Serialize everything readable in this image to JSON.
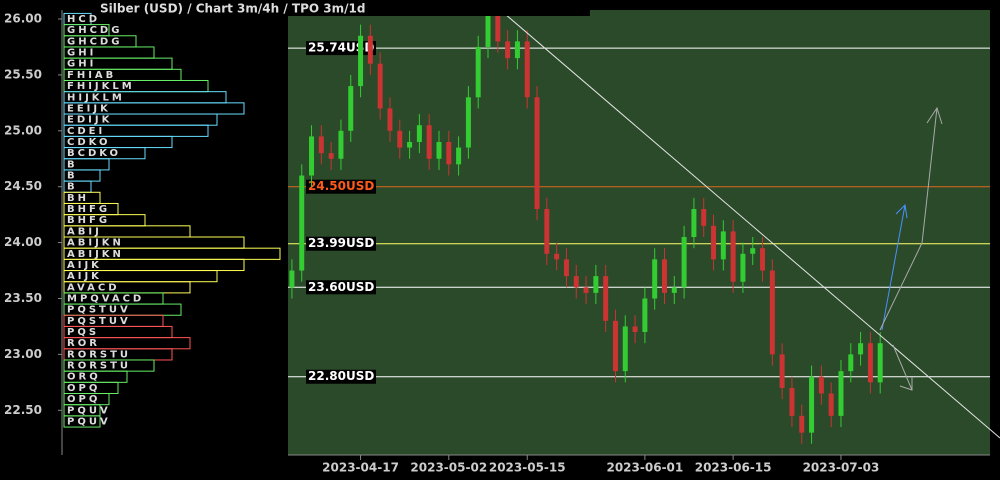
{
  "chart_data": {
    "type": "candlestick",
    "title": "Silber (USD) /  Chart 3m/4h / TPO 3m/1d",
    "up_color": "#33cc33",
    "down_color": "#cc3333",
    "open": [
      23.6,
      23.75,
      24.6,
      24.95,
      24.8,
      24.75,
      25.0,
      25.4,
      25.85,
      25.6,
      25.2,
      25.0,
      24.85,
      24.9,
      25.05,
      24.75,
      24.9,
      24.7,
      24.85,
      25.3,
      25.75,
      26.05,
      25.8,
      25.65,
      25.8,
      25.3,
      24.3,
      23.9,
      23.85,
      23.7,
      23.6,
      23.55,
      23.7,
      23.3,
      22.85,
      23.25,
      23.2,
      23.5,
      23.85,
      23.55,
      23.6,
      24.05,
      24.3,
      24.15,
      23.85,
      24.1,
      23.65,
      23.9,
      23.95,
      23.75,
      23.0,
      22.7,
      22.45,
      22.3,
      22.8,
      22.65,
      22.45,
      22.85,
      23.0,
      23.1,
      22.75
    ],
    "high": [
      23.85,
      24.7,
      25.05,
      25.05,
      24.9,
      25.1,
      25.5,
      25.95,
      25.95,
      25.7,
      25.3,
      25.1,
      25.0,
      25.15,
      25.15,
      25.0,
      25.0,
      24.95,
      25.4,
      25.85,
      26.15,
      26.15,
      25.9,
      25.9,
      25.9,
      25.4,
      24.4,
      24.0,
      23.95,
      23.8,
      23.7,
      23.8,
      23.8,
      23.4,
      23.35,
      23.35,
      23.6,
      23.95,
      23.95,
      23.7,
      24.15,
      24.4,
      24.4,
      24.25,
      24.2,
      24.2,
      24.0,
      24.05,
      24.05,
      23.85,
      23.1,
      22.8,
      22.55,
      22.9,
      22.9,
      22.75,
      22.95,
      23.1,
      23.2,
      23.2,
      23.2
    ],
    "low": [
      23.5,
      23.65,
      24.5,
      24.7,
      24.65,
      24.65,
      24.9,
      25.3,
      25.5,
      25.1,
      24.9,
      24.75,
      24.75,
      24.8,
      24.65,
      24.65,
      24.6,
      24.6,
      24.75,
      25.2,
      25.65,
      25.7,
      25.55,
      25.55,
      25.2,
      24.2,
      23.8,
      23.75,
      23.6,
      23.5,
      23.45,
      23.45,
      23.2,
      22.75,
      22.75,
      23.1,
      23.1,
      23.4,
      23.45,
      23.45,
      23.5,
      23.95,
      24.05,
      23.75,
      23.75,
      23.55,
      23.55,
      23.8,
      23.65,
      22.9,
      22.6,
      22.35,
      22.2,
      22.2,
      22.55,
      22.35,
      22.35,
      22.75,
      22.9,
      22.65,
      22.65
    ],
    "close": [
      23.75,
      24.6,
      24.95,
      24.8,
      24.75,
      25.0,
      25.4,
      25.85,
      25.6,
      25.2,
      25.0,
      24.85,
      24.9,
      25.05,
      24.75,
      24.9,
      24.7,
      24.85,
      25.3,
      25.75,
      26.05,
      25.8,
      25.65,
      25.8,
      25.3,
      24.3,
      23.9,
      23.85,
      23.7,
      23.6,
      23.55,
      23.7,
      23.3,
      22.85,
      23.25,
      23.2,
      23.5,
      23.85,
      23.55,
      23.6,
      24.05,
      24.3,
      24.15,
      23.85,
      24.1,
      23.65,
      23.9,
      23.95,
      23.75,
      23.0,
      22.7,
      22.45,
      22.3,
      22.8,
      22.65,
      22.45,
      22.85,
      23.0,
      23.1,
      22.75,
      23.1
    ],
    "xlim": [
      -0.4,
      71.2
    ],
    "xticks": [
      {
        "value": 7,
        "label": "2023-04-17"
      },
      {
        "value": 16,
        "label": "2023-05-02"
      },
      {
        "value": 24,
        "label": "2023-05-15"
      },
      {
        "value": 36,
        "label": "2023-06-01"
      },
      {
        "value": 45,
        "label": "2023-06-15"
      },
      {
        "value": 56,
        "label": "2023-07-03"
      }
    ],
    "ylim": [
      22.1,
      26.17
    ],
    "yticks": [
      {
        "value": 26,
        "label": "26.00"
      },
      {
        "value": 25.5,
        "label": "25.50"
      },
      {
        "value": 25,
        "label": "25.00"
      },
      {
        "value": 24.5,
        "label": "24.50"
      },
      {
        "value": 24,
        "label": "24.00"
      },
      {
        "value": 23.5,
        "label": "23.50"
      },
      {
        "value": 23,
        "label": "23.00"
      },
      {
        "value": 22.5,
        "label": "22.50"
      }
    ],
    "levels": [
      {
        "value": 25.74,
        "label": "25.74USD",
        "color": "#ffffff",
        "text_color": "#ffffff"
      },
      {
        "value": 24.5,
        "label": "24.50USD",
        "color": "#e0661c",
        "text_color": "#ff5a1a"
      },
      {
        "value": 23.99,
        "label": "23.99USD",
        "color": "#ffff66",
        "text_color": "#ffffff"
      },
      {
        "value": 23.6,
        "label": "23.60USD",
        "color": "#ffffff",
        "text_color": "#ffffff"
      },
      {
        "value": 22.8,
        "label": "22.80USD",
        "color": "#ffffff",
        "text_color": "#ffffff"
      }
    ],
    "profile": [
      {
        "price": 26.0,
        "letters": "HCD",
        "count": 3,
        "color": "#66ddff"
      },
      {
        "price": 25.9,
        "letters": "GHCDG",
        "count": 5,
        "color": "#66ee66"
      },
      {
        "price": 25.8,
        "letters": "GHCDG",
        "count": 8,
        "color": "#66ee66"
      },
      {
        "price": 25.7,
        "letters": "GHI",
        "count": 10,
        "color": "#66ee66"
      },
      {
        "price": 25.6,
        "letters": "GHI",
        "count": 12,
        "color": "#66ee66"
      },
      {
        "price": 25.5,
        "letters": "FHIAB",
        "count": 13,
        "color": "#66ee66"
      },
      {
        "price": 25.4,
        "letters": "FHIJKLM",
        "count": 16,
        "color": "#66ee66"
      },
      {
        "price": 25.3,
        "letters": "HIJKLM",
        "count": 18,
        "color": "#66ddff"
      },
      {
        "price": 25.2,
        "letters": "EEIJK",
        "count": 20,
        "color": "#66ddff"
      },
      {
        "price": 25.1,
        "letters": "EDIJK",
        "count": 17,
        "color": "#66ddff"
      },
      {
        "price": 25.0,
        "letters": "CDEI",
        "count": 16,
        "color": "#66ddff"
      },
      {
        "price": 24.9,
        "letters": "CDKO",
        "count": 12,
        "color": "#66ddff"
      },
      {
        "price": 24.8,
        "letters": "BCDKO",
        "count": 9,
        "color": "#66ddff"
      },
      {
        "price": 24.7,
        "letters": "B",
        "count": 5,
        "color": "#66ddff"
      },
      {
        "price": 24.6,
        "letters": "B",
        "count": 4,
        "color": "#66ddff"
      },
      {
        "price": 24.5,
        "letters": "B",
        "count": 3,
        "color": "#66ddff"
      },
      {
        "price": 24.4,
        "letters": "BH",
        "count": 4,
        "color": "#ffff55"
      },
      {
        "price": 24.3,
        "letters": "BHFG",
        "count": 6,
        "color": "#ffff55"
      },
      {
        "price": 24.2,
        "letters": "BHFG",
        "count": 9,
        "color": "#ffff55"
      },
      {
        "price": 24.1,
        "letters": "ABIJ",
        "count": 14,
        "color": "#ffff55"
      },
      {
        "price": 24.0,
        "letters": "ABIJKN",
        "count": 20,
        "color": "#ffff55"
      },
      {
        "price": 23.9,
        "letters": "ABIJKN",
        "count": 24,
        "color": "#ffff55"
      },
      {
        "price": 23.8,
        "letters": "AIJK",
        "count": 20,
        "color": "#ffff55"
      },
      {
        "price": 23.7,
        "letters": "AIJK",
        "count": 17,
        "color": "#ffff55"
      },
      {
        "price": 23.6,
        "letters": "AVACD",
        "count": 14,
        "color": "#ffff55"
      },
      {
        "price": 23.5,
        "letters": "MPQVACD",
        "count": 11,
        "color": "#66ee66"
      },
      {
        "price": 23.4,
        "letters": "PQSTUV",
        "count": 13,
        "color": "#66ee66"
      },
      {
        "price": 23.3,
        "letters": "PQSTUV",
        "count": 11,
        "color": "#ff5555"
      },
      {
        "price": 23.2,
        "letters": "PQS",
        "count": 12,
        "color": "#ff5555"
      },
      {
        "price": 23.1,
        "letters": "ROR",
        "count": 14,
        "color": "#ff5555"
      },
      {
        "price": 23.0,
        "letters": "RORSTU",
        "count": 12,
        "color": "#ff5555"
      },
      {
        "price": 22.9,
        "letters": "RORSTU",
        "count": 10,
        "color": "#66ee66"
      },
      {
        "price": 22.8,
        "letters": "ORQ",
        "count": 7,
        "color": "#66ee66"
      },
      {
        "price": 22.7,
        "letters": "OPQ",
        "count": 6,
        "color": "#66ee66"
      },
      {
        "price": 22.6,
        "letters": "OPQ",
        "count": 5,
        "color": "#66ee66"
      },
      {
        "price": 22.5,
        "letters": "PQUV",
        "count": 4,
        "color": "#66ee66"
      },
      {
        "price": 22.4,
        "letters": "PQUV",
        "count": 4,
        "color": "#66ee66"
      }
    ]
  }
}
